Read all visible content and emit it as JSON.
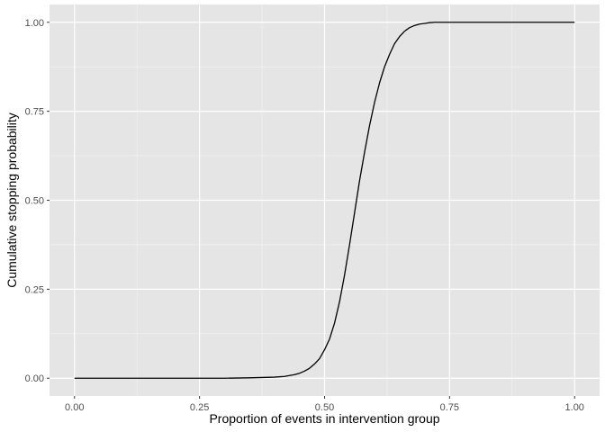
{
  "chart_data": {
    "type": "line",
    "title": "",
    "xlabel": "Proportion of events in intervention group",
    "ylabel": "Cumulative stopping probability",
    "xlim": [
      -0.05,
      1.05
    ],
    "ylim": [
      -0.05,
      1.05
    ],
    "x_ticks": [
      0.0,
      0.25,
      0.5,
      0.75,
      1.0
    ],
    "x_tick_labels": [
      "0.00",
      "0.25",
      "0.50",
      "0.75",
      "1.00"
    ],
    "y_ticks": [
      0.0,
      0.25,
      0.5,
      0.75,
      1.0
    ],
    "y_tick_labels": [
      "0.00",
      "0.25",
      "0.50",
      "0.75",
      "1.00"
    ],
    "grid": true,
    "series": [
      {
        "color": "#000000",
        "x": [
          0.0,
          0.05,
          0.1,
          0.15,
          0.2,
          0.25,
          0.3,
          0.35,
          0.4,
          0.42,
          0.44,
          0.45,
          0.46,
          0.47,
          0.48,
          0.49,
          0.5,
          0.51,
          0.52,
          0.53,
          0.54,
          0.55,
          0.56,
          0.57,
          0.58,
          0.59,
          0.6,
          0.61,
          0.62,
          0.63,
          0.64,
          0.65,
          0.66,
          0.67,
          0.68,
          0.69,
          0.7,
          0.71,
          0.72,
          0.73,
          0.74,
          0.75,
          0.77,
          0.8,
          0.85,
          0.9,
          0.95,
          1.0
        ],
        "y": [
          0.0,
          0.0,
          0.0,
          0.0,
          0.0,
          0.0,
          0.0,
          0.001,
          0.003,
          0.005,
          0.01,
          0.014,
          0.02,
          0.028,
          0.04,
          0.055,
          0.08,
          0.11,
          0.155,
          0.215,
          0.29,
          0.375,
          0.465,
          0.555,
          0.635,
          0.71,
          0.775,
          0.83,
          0.875,
          0.91,
          0.94,
          0.96,
          0.975,
          0.985,
          0.991,
          0.995,
          0.997,
          0.999,
          1.0,
          1.0,
          1.0,
          1.0,
          1.0,
          1.0,
          1.0,
          1.0,
          1.0,
          1.0
        ]
      }
    ]
  },
  "colors": {
    "panel_background": "#e5e5e5",
    "grid_major": "#ffffff",
    "grid_minor": "#f2f2f2",
    "line": "#000000",
    "tick_mark": "#333333"
  }
}
